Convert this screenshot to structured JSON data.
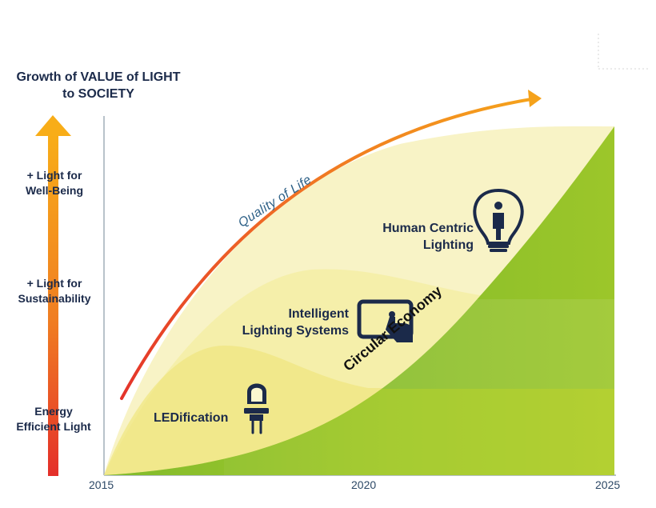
{
  "title": {
    "line1": "Growth of VALUE of LIGHT",
    "line2": "to SOCIETY"
  },
  "levels": [
    {
      "line1": "+ Light for",
      "line2": "Well-Being"
    },
    {
      "line1": "+ Light for",
      "line2": "Sustainability"
    },
    {
      "line1": "Energy",
      "line2": "Efficient Light"
    }
  ],
  "phases": {
    "ledification": "LEDification",
    "intelligent": {
      "line1": "Intelligent",
      "line2": "Lighting Systems"
    },
    "human_centric": {
      "line1": "Human Centric",
      "line2": "Lighting"
    }
  },
  "circular_economy": "Circular Economy",
  "quality_of_life": "Quality of Life",
  "years": [
    "2015",
    "2020",
    "2025"
  ],
  "icons": [
    "led-diode-icon",
    "tablet-touch-icon",
    "lightbulb-person-icon"
  ],
  "colors": {
    "green_dark": "#6fb52c",
    "green_light": "#c6d92a",
    "yellow_pale": "#f7f2b8",
    "arrow_top": "#f7a71a",
    "arrow_bottom": "#e8332a",
    "text": "#1b2a4a"
  }
}
